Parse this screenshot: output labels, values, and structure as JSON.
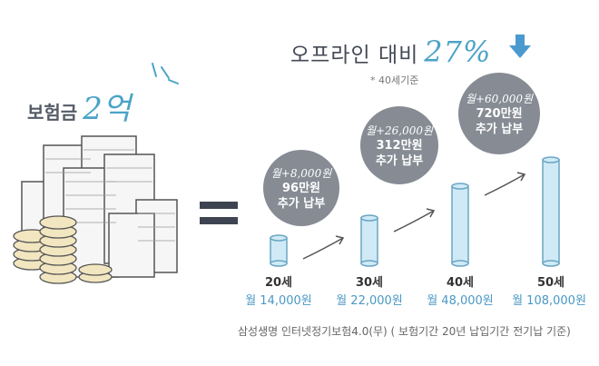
{
  "insurance": {
    "label": "보험금",
    "amount": "2억"
  },
  "comparison": {
    "label": "오프라인 대비",
    "percent": "27%",
    "arrow_icon": "down-arrow-icon",
    "note": "* 40세기준"
  },
  "equals": "=",
  "tiers": [
    {
      "age": "20세",
      "monthly": "월 14,000원",
      "bubble": null
    },
    {
      "age": "30세",
      "monthly": "월 22,000원",
      "bubble": {
        "handwritten": "월+8,000원",
        "line1": "96만원",
        "line2": "추가 납부"
      }
    },
    {
      "age": "40세",
      "monthly": "월 48,000원",
      "bubble": {
        "handwritten": "월+26,000원",
        "line1": "312만원",
        "line2": "추가 납부"
      }
    },
    {
      "age": "50세",
      "monthly": "월 108,000원",
      "bubble": {
        "handwritten": "월+60,000원",
        "line1": "720만원",
        "line2": "추가 납부"
      }
    }
  ],
  "footer": "삼성생명 인터넷정기보험4.0(무) ( 보험기간 20년 납입기간 전기납 기준)",
  "colors": {
    "accent": "#4aa3c8",
    "bubble": "#868b94",
    "cylinder": "#cfeaf6",
    "cylinder_stroke": "#6aa6c4"
  }
}
